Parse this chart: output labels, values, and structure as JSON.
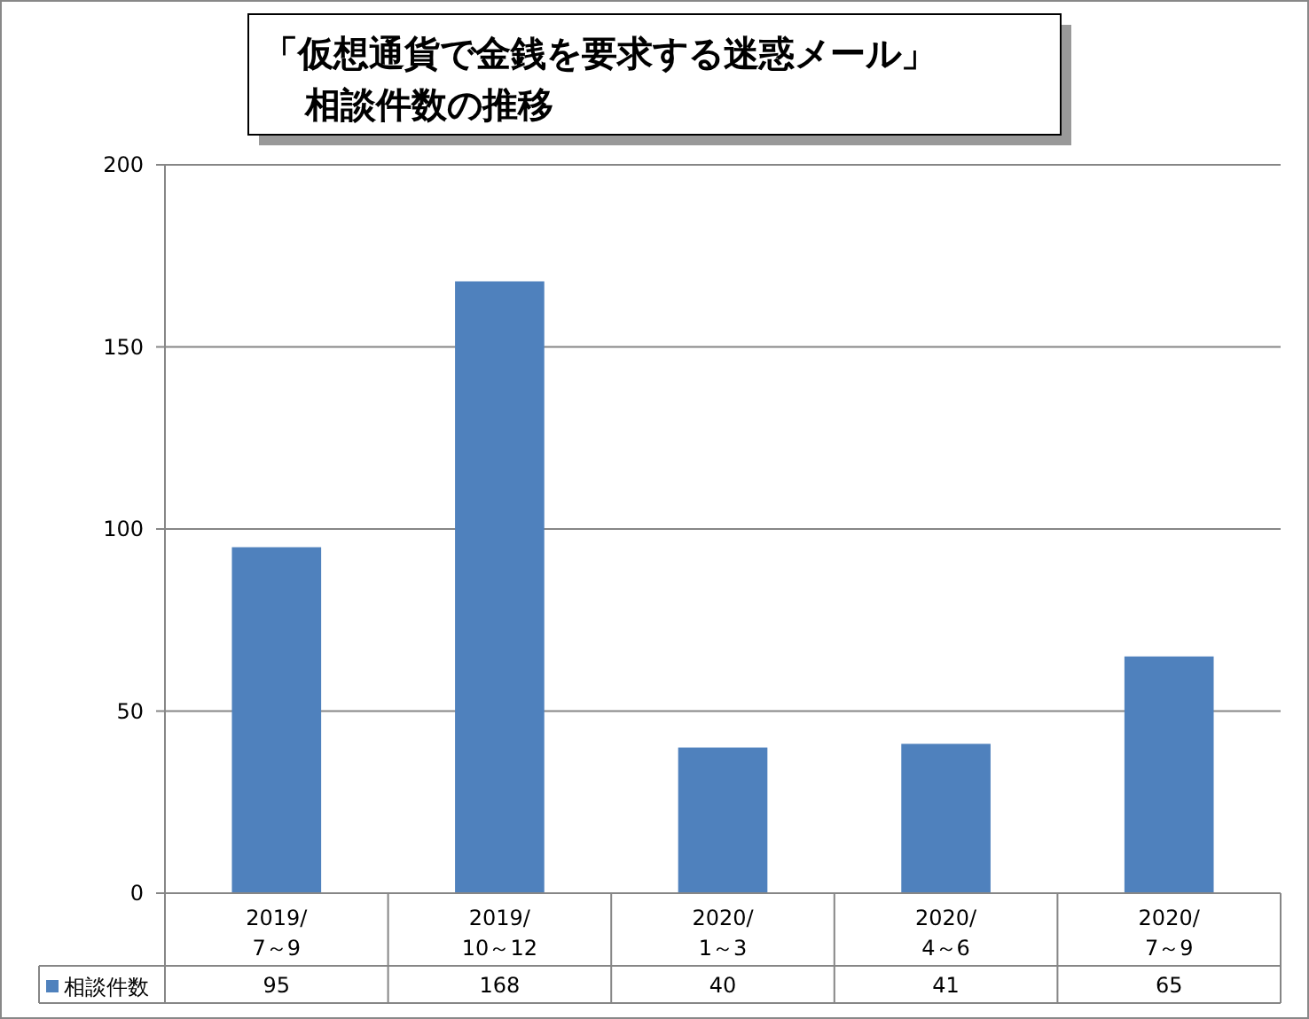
{
  "chart_data": {
    "type": "bar",
    "title": "「仮想通貨で金銭を要求する迷惑メール」",
    "subtitle": "相談件数の推移",
    "categories": [
      "2019/\n7～9",
      "2019/\n10～12",
      "2020/\n1～3",
      "2020/\n4～6",
      "2020/\n7～9"
    ],
    "series": [
      {
        "name": "相談件数",
        "color": "#4f81bd",
        "values": [
          95,
          168,
          40,
          41,
          65
        ]
      }
    ],
    "ylim": [
      0,
      200
    ],
    "yticks": [
      0,
      50,
      100,
      150,
      200
    ],
    "grid": "y",
    "legend": "bottom",
    "data_labels": true
  }
}
